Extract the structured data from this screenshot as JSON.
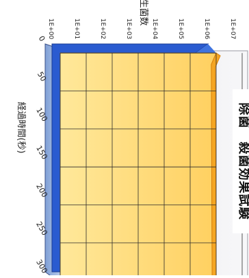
{
  "chart_data": {
    "type": "area",
    "title": "除菌　殺菌効果試験",
    "xlabel": "経過時間(秒)",
    "ylabel": "生菌数",
    "y_scale": "log",
    "y_ticks": [
      "1E+00",
      "1E+01",
      "1E+02",
      "1E+03",
      "1E+04",
      "1E+05",
      "1E+06",
      "1E+07"
    ],
    "x_ticks": [
      0,
      50,
      100,
      150,
      200,
      250,
      300
    ],
    "xlim": [
      0,
      300
    ],
    "ylim": [
      1,
      10000000
    ],
    "grid": true,
    "rendering": "3d",
    "series": [
      {
        "color": "#2a5bd0",
        "x": [
          0,
          15,
          300
        ],
        "y": [
          1000000,
          250000,
          800000
        ]
      },
      {
        "color": "#f5a623",
        "x": [
          0,
          15,
          300
        ],
        "y": [
          1000000,
          650000,
          700000
        ]
      }
    ]
  }
}
